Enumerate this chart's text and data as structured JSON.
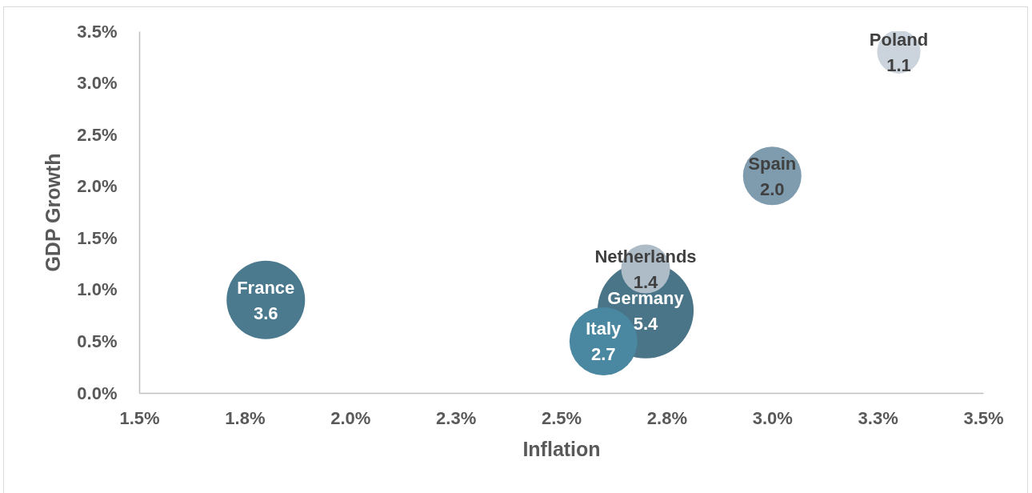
{
  "chart_data": {
    "type": "bubble",
    "xlabel": "Inflation",
    "ylabel": "GDP Growth",
    "xlim": [
      1.5,
      3.5
    ],
    "xticks": [
      {
        "value": 1.5,
        "label": "1.5%"
      },
      {
        "value": 1.75,
        "label": "1.8%"
      },
      {
        "value": 2.0,
        "label": "2.0%"
      },
      {
        "value": 2.25,
        "label": "2.3%"
      },
      {
        "value": 2.5,
        "label": "2.5%"
      },
      {
        "value": 2.75,
        "label": "2.8%"
      },
      {
        "value": 3.0,
        "label": "3.0%"
      },
      {
        "value": 3.25,
        "label": "3.3%"
      },
      {
        "value": 3.5,
        "label": "3.5%"
      }
    ],
    "ylim": [
      0,
      3.5
    ],
    "yticks": [
      {
        "value": 0,
        "label": "0.0%"
      },
      {
        "value": 0.5,
        "label": "0.5%"
      },
      {
        "value": 1.0,
        "label": "1.0%"
      },
      {
        "value": 1.5,
        "label": "1.5%"
      },
      {
        "value": 2.0,
        "label": "2.0%"
      },
      {
        "value": 2.5,
        "label": "2.5%"
      },
      {
        "value": 3.0,
        "label": "3.0%"
      },
      {
        "value": 3.5,
        "label": "3.5%"
      }
    ],
    "series": [
      {
        "name": "France",
        "color": "#4b7a8f",
        "x": [
          1.8
        ],
        "values": [
          0.9
        ],
        "sizes": [
          3.6
        ],
        "value_labels": [
          "3.6"
        ]
      },
      {
        "name": "Germany",
        "color": "#4a7487",
        "x": [
          2.7
        ],
        "values": [
          0.8
        ],
        "sizes": [
          5.4
        ],
        "value_labels": [
          "5.4"
        ]
      },
      {
        "name": "Italy",
        "color": "#4a87a0",
        "x": [
          2.6
        ],
        "values": [
          0.5
        ],
        "sizes": [
          2.7
        ],
        "value_labels": [
          "2.7"
        ]
      },
      {
        "name": "Netherlands",
        "color": "#aebcc8",
        "x": [
          2.7
        ],
        "values": [
          1.2
        ],
        "sizes": [
          1.4
        ],
        "value_labels": [
          "1.4"
        ]
      },
      {
        "name": "Spain",
        "color": "#7f9cae",
        "x": [
          3.0
        ],
        "values": [
          2.1
        ],
        "sizes": [
          2.0
        ],
        "value_labels": [
          "2.0"
        ]
      },
      {
        "name": "Poland",
        "color": "#cbd4dc",
        "x": [
          3.3
        ],
        "values": [
          3.3
        ],
        "sizes": [
          1.1
        ],
        "value_labels": [
          "1.1"
        ]
      }
    ],
    "grid": false,
    "legend": false
  }
}
